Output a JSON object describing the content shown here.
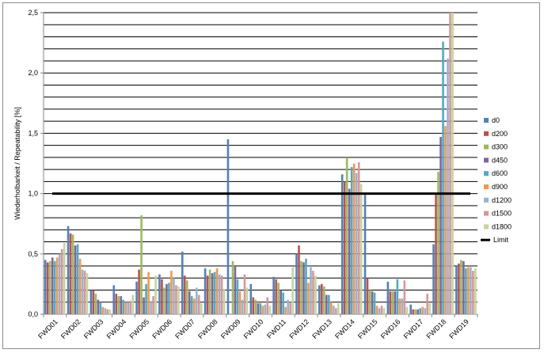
{
  "chart_data": {
    "type": "bar",
    "title": "",
    "xlabel": "",
    "ylabel": "Wiederholbarkeit / Repeatability [%]",
    "ylim": [
      0,
      2.5
    ],
    "yticks": [
      "0,0",
      "0,5",
      "1,0",
      "1,5",
      "2,0",
      "2,5"
    ],
    "grid": true,
    "grid_step": 0.1,
    "legend_position": "right",
    "categories": [
      "FWD01",
      "FWD02",
      "FWD03",
      "FWD04",
      "FWD05",
      "FWD06",
      "FWD07",
      "FWD08",
      "FWD09",
      "FWD10",
      "FWD11",
      "FWD12",
      "FWD13",
      "FWD14",
      "FWD15",
      "FWD16",
      "FWD17",
      "FWD18",
      "FWD19"
    ],
    "series": [
      {
        "name": "d0",
        "color": "#4F81BD",
        "values": [
          0.45,
          0.73,
          0.2,
          0.24,
          0.27,
          0.33,
          0.52,
          0.38,
          1.45,
          0.25,
          0.31,
          0.5,
          0.24,
          1.16,
          0.99,
          0.27,
          0.08,
          0.58,
          0.4
        ]
      },
      {
        "name": "d200",
        "color": "#C0504D",
        "values": [
          0.43,
          0.67,
          0.2,
          0.17,
          0.37,
          0.29,
          0.32,
          0.32,
          0.0,
          0.14,
          0.29,
          0.57,
          0.25,
          1.1,
          0.3,
          0.19,
          0.04,
          0.99,
          0.42
        ]
      },
      {
        "name": "d300",
        "color": "#9BBB59",
        "values": [
          0.44,
          0.66,
          0.17,
          0.15,
          0.82,
          0.22,
          0.28,
          0.37,
          0.44,
          0.12,
          0.26,
          0.44,
          0.23,
          1.3,
          0.2,
          0.19,
          0.04,
          1.18,
          0.45
        ]
      },
      {
        "name": "d450",
        "color": "#8064A2",
        "values": [
          0.47,
          0.57,
          0.12,
          0.15,
          0.14,
          0.25,
          0.19,
          0.34,
          0.4,
          0.09,
          0.2,
          0.43,
          0.16,
          1.04,
          0.19,
          0.19,
          0.04,
          1.47,
          0.44
        ]
      },
      {
        "name": "d600",
        "color": "#4BACC6",
        "values": [
          0.44,
          0.58,
          0.1,
          0.12,
          0.25,
          0.26,
          0.15,
          0.35,
          0.29,
          0.09,
          0.18,
          0.46,
          0.16,
          1.22,
          0.18,
          0.29,
          0.05,
          2.26,
          0.38
        ]
      },
      {
        "name": "d900",
        "color": "#F79646",
        "values": [
          0.47,
          0.46,
          0.06,
          0.1,
          0.35,
          0.36,
          0.13,
          0.38,
          0.19,
          0.07,
          0.06,
          0.26,
          0.1,
          1.25,
          0.07,
          0.13,
          0.06,
          1.56,
          0.39
        ]
      },
      {
        "name": "d1200",
        "color": "#95B3D7",
        "values": [
          0.5,
          0.37,
          0.05,
          0.1,
          0.11,
          0.3,
          0.22,
          0.33,
          0.12,
          0.08,
          0.12,
          0.39,
          0.07,
          1.17,
          0.05,
          0.13,
          0.05,
          2.12,
          0.39
        ]
      },
      {
        "name": "d1500",
        "color": "#D99694",
        "values": [
          0.54,
          0.36,
          0.04,
          0.11,
          0.15,
          0.24,
          0.16,
          0.32,
          0.33,
          0.14,
          0.1,
          0.36,
          0.05,
          1.26,
          0.07,
          0.28,
          0.17,
          2.5,
          0.36
        ]
      },
      {
        "name": "d1800",
        "color": "#C3D69B",
        "values": [
          0.59,
          0.34,
          0.04,
          0.16,
          0.32,
          0.23,
          0.09,
          0.21,
          0.22,
          0.07,
          0.39,
          0.32,
          0.09,
          1.08,
          0.05,
          0.06,
          0.09,
          2.5,
          0.38
        ]
      }
    ],
    "reference_line": {
      "name": "Limit",
      "value": 1.0,
      "color": "#000000"
    }
  }
}
